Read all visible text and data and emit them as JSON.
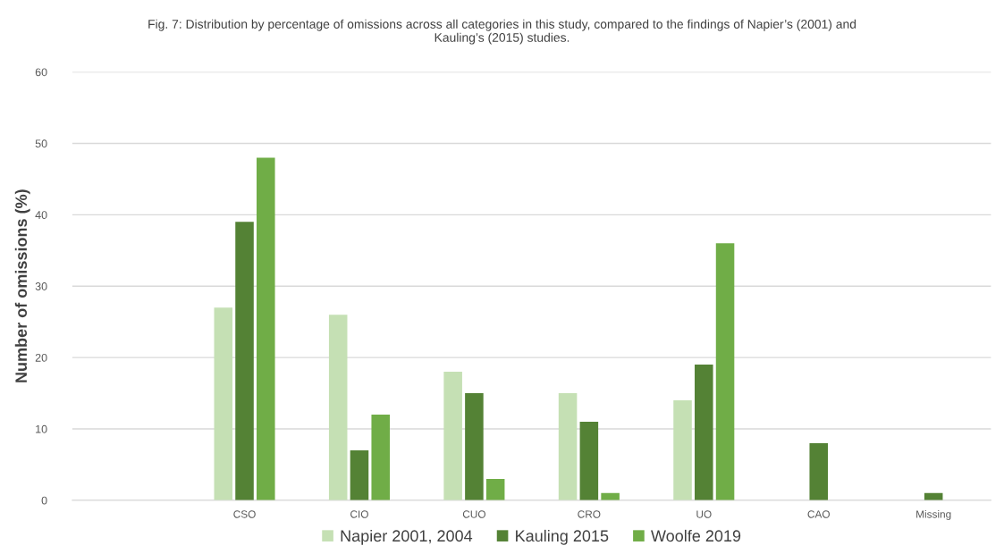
{
  "chart_data": {
    "type": "bar",
    "title": "Fig. 7: Distribution by percentage of omissions across all categories in this study, compared to the findings of Napier’s (2001) and\nKauling’s (2015) studies.",
    "ylabel": "Number of omissions (%)",
    "categories": [
      null,
      "CSO",
      "CIO",
      "CUO",
      "CRO",
      "UO",
      "CAO",
      "Missing"
    ],
    "series": [
      {
        "name": "Napier 2001, 2004",
        "color": "#c5e0b4",
        "values": [
          null,
          27,
          26,
          18,
          15,
          14,
          null,
          null
        ]
      },
      {
        "name": "Kauling 2015",
        "color": "#548235",
        "values": [
          null,
          39,
          7,
          15,
          11,
          19,
          8,
          1
        ]
      },
      {
        "name": "Woolfe 2019",
        "color": "#70ad47",
        "values": [
          null,
          48,
          12,
          3,
          1,
          36,
          null,
          null
        ]
      }
    ],
    "ylim": [
      0,
      60
    ],
    "yticks": [
      0,
      10,
      20,
      30,
      40,
      50,
      60
    ],
    "grid": "y",
    "legend": "bottom"
  }
}
